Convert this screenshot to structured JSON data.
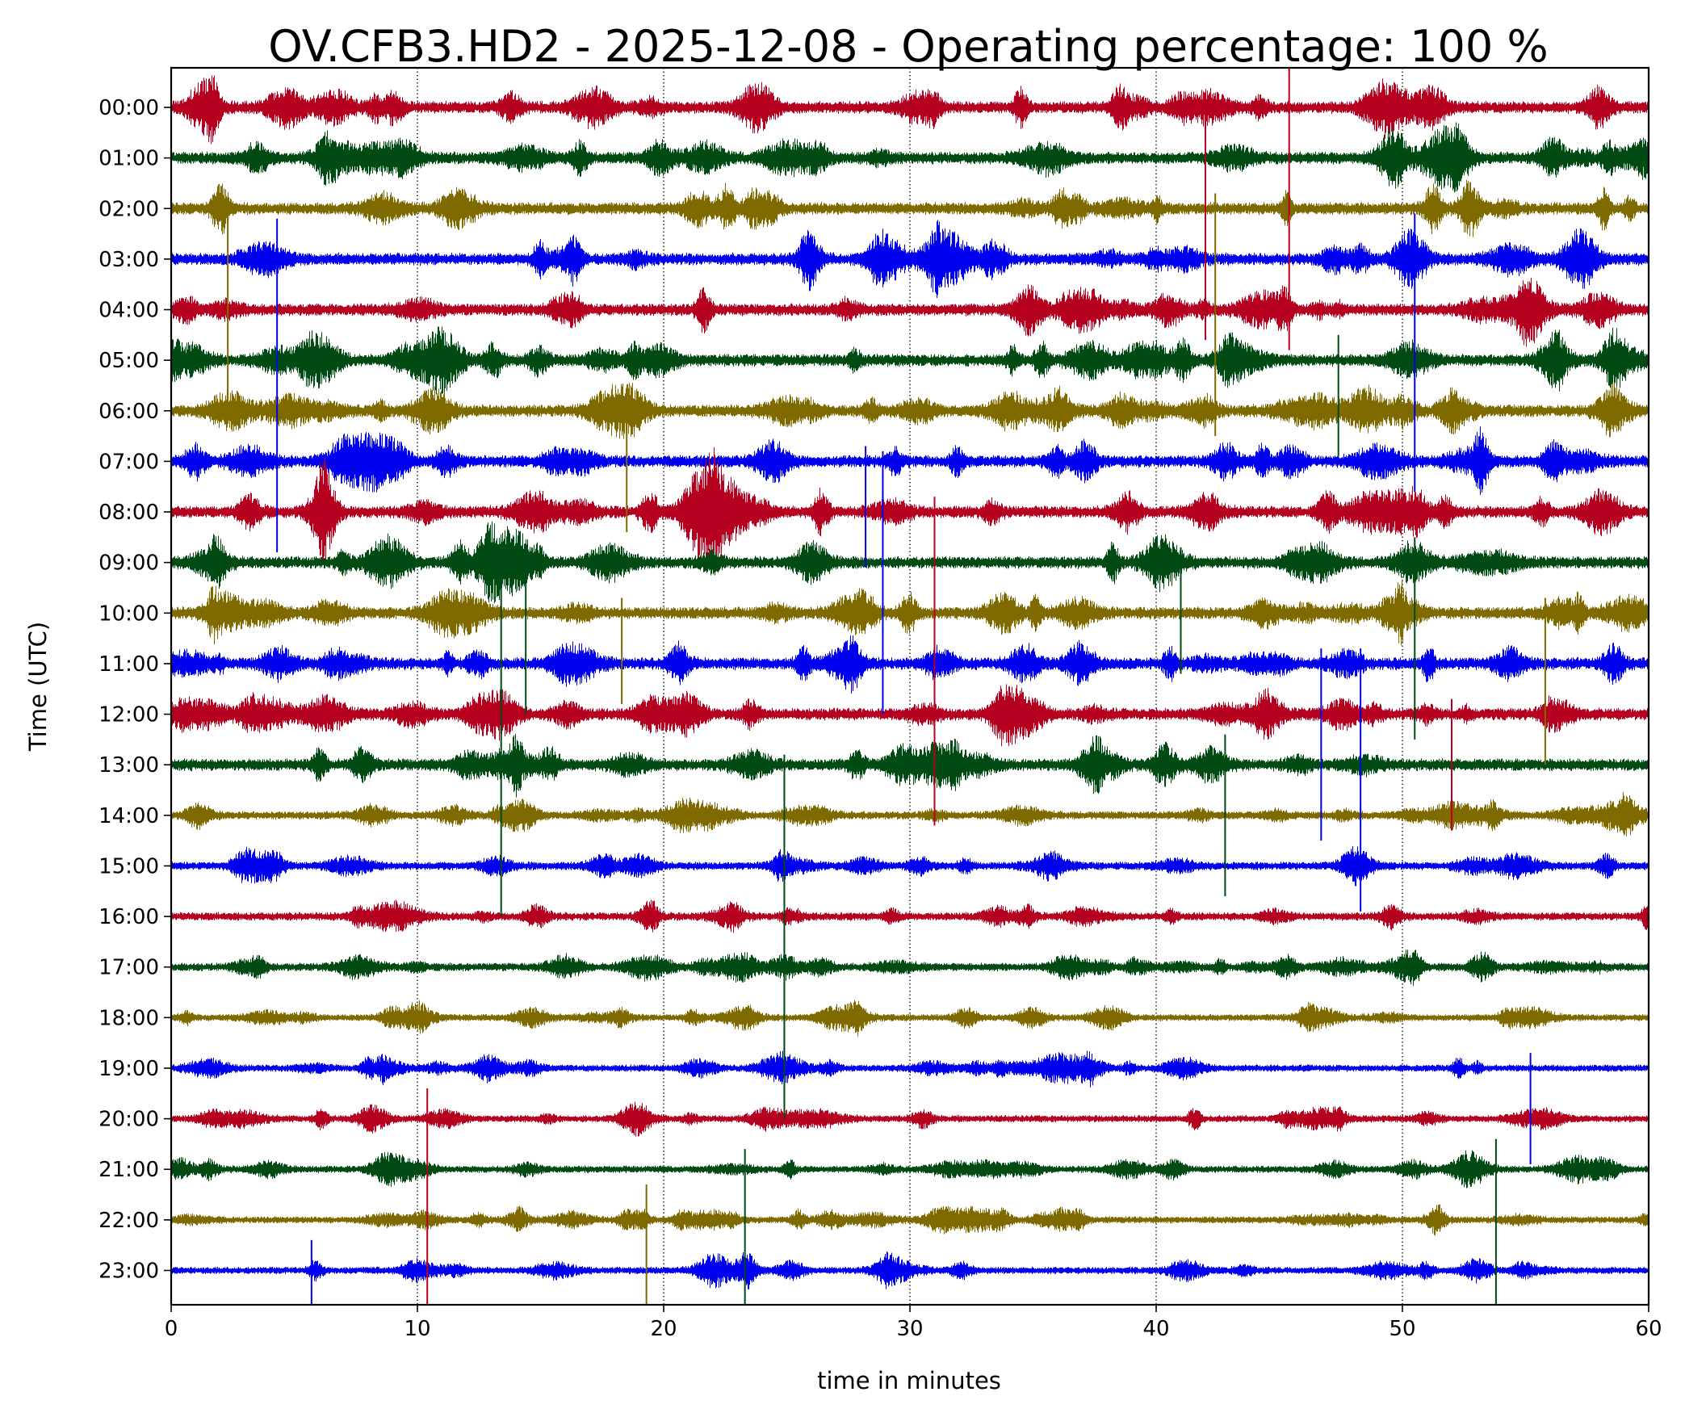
{
  "chart_data": {
    "type": "line",
    "title": "OV.CFB3.HD2 - 2025-12-08 - Operating percentage: 100 %",
    "xlabel": "time in minutes",
    "ylabel": "Time (UTC)",
    "xlim": [
      0,
      60
    ],
    "xticks": [
      0,
      10,
      20,
      30,
      40,
      50,
      60
    ],
    "grid": "vertical dotted lines at 10, 20, 30, 40, 50",
    "rows": [
      "00:00",
      "01:00",
      "02:00",
      "03:00",
      "04:00",
      "05:00",
      "06:00",
      "07:00",
      "08:00",
      "09:00",
      "10:00",
      "11:00",
      "12:00",
      "13:00",
      "14:00",
      "15:00",
      "16:00",
      "17:00",
      "18:00",
      "19:00",
      "20:00",
      "21:00",
      "22:00",
      "23:00"
    ],
    "colors": [
      "#b5001f",
      "#004b14",
      "#7f6a00",
      "#0000ee"
    ],
    "spikes": [
      {
        "row": 0,
        "t": 45.4,
        "up": 1.2,
        "down": 4.8
      },
      {
        "row": 0,
        "t": 42.0,
        "up": 0.3,
        "down": 4.6
      },
      {
        "row": 2,
        "t": 2.3,
        "up": 0.2,
        "down": 3.8
      },
      {
        "row": 3,
        "t": 4.3,
        "up": 0.8,
        "down": 5.8
      },
      {
        "row": 2,
        "t": 42.4,
        "up": 0.3,
        "down": 4.5
      },
      {
        "row": 3,
        "t": 50.5,
        "up": 0.9,
        "down": 4.6
      },
      {
        "row": 5,
        "t": 47.4,
        "up": 0.5,
        "down": 1.9
      },
      {
        "row": 6,
        "t": 18.5,
        "up": 0.3,
        "down": 2.4
      },
      {
        "row": 7,
        "t": 28.9,
        "up": 0.2,
        "down": 5.0
      },
      {
        "row": 7,
        "t": 28.2,
        "up": 0.3,
        "down": 2.1
      },
      {
        "row": 8,
        "t": 31.0,
        "up": 0.3,
        "down": 6.2
      },
      {
        "row": 9,
        "t": 13.4,
        "up": 0.3,
        "down": 7.0
      },
      {
        "row": 9,
        "t": 14.4,
        "up": 0.2,
        "down": 3.0
      },
      {
        "row": 9,
        "t": 41.0,
        "up": 0.3,
        "down": 2.2
      },
      {
        "row": 9,
        "t": 50.5,
        "up": 0.5,
        "down": 3.5
      },
      {
        "row": 10,
        "t": 18.3,
        "up": 0.3,
        "down": 1.8
      },
      {
        "row": 10,
        "t": 55.8,
        "up": 0.3,
        "down": 3.0
      },
      {
        "row": 11,
        "t": 46.7,
        "up": 0.3,
        "down": 3.5
      },
      {
        "row": 11,
        "t": 48.3,
        "up": 0.3,
        "down": 4.9
      },
      {
        "row": 12,
        "t": 52.0,
        "up": 0.3,
        "down": 2.3
      },
      {
        "row": 13,
        "t": 42.8,
        "up": 0.6,
        "down": 2.6
      },
      {
        "row": 13,
        "t": 24.9,
        "up": 0.2,
        "down": 7.0
      },
      {
        "row": 20,
        "t": 10.4,
        "up": 0.6,
        "down": 3.7
      },
      {
        "row": 21,
        "t": 23.3,
        "up": 0.4,
        "down": 2.9
      },
      {
        "row": 21,
        "t": 53.8,
        "up": 0.6,
        "down": 3.1
      },
      {
        "row": 22,
        "t": 19.3,
        "up": 0.7,
        "down": 1.7
      },
      {
        "row": 23,
        "t": 5.7,
        "up": 0.6,
        "down": 0.8
      },
      {
        "row": 19,
        "t": 55.2,
        "up": 0.3,
        "down": 1.9
      }
    ]
  }
}
